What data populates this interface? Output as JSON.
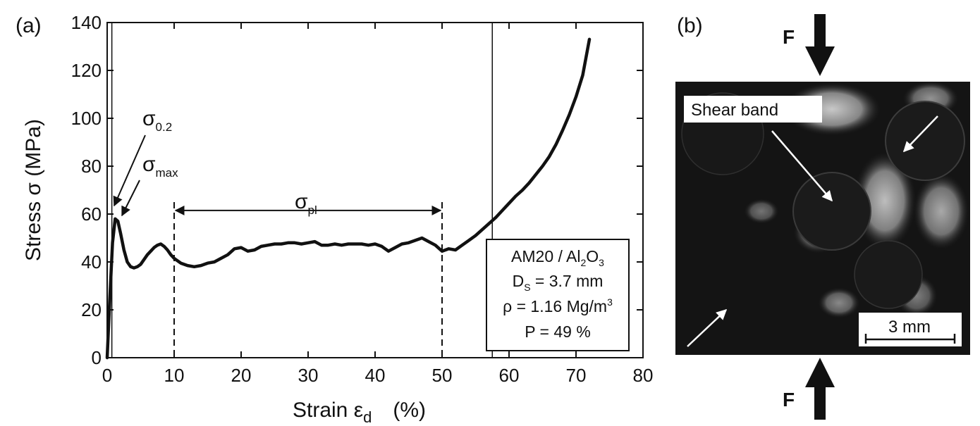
{
  "panel_a_label": "(a)",
  "panel_b_label": "(b)",
  "chart_data": {
    "type": "line",
    "xlabel": "Strain  ε",
    "xlabel_sub": "d",
    "xlabel_unit": "(%)",
    "ylabel": "Stress  σ  (MPa)",
    "xlim": [
      0,
      80
    ],
    "ylim": [
      0,
      140
    ],
    "xticks": [
      "0",
      "10",
      "20",
      "30",
      "40",
      "50",
      "60",
      "70",
      "80"
    ],
    "yticks": [
      "0",
      "20",
      "40",
      "60",
      "80",
      "100",
      "120",
      "140"
    ],
    "grid": false,
    "series": [
      {
        "x": [
          0,
          0.4,
          0.8,
          1.2,
          1.6,
          2.0,
          2.5,
          3.0,
          3.5,
          4.0,
          4.5,
          5.0,
          5.5,
          6.0,
          6.5,
          7.0,
          7.5,
          8.0,
          8.5,
          9.0,
          9.5,
          10.0,
          11,
          12,
          13,
          14,
          15,
          16,
          17,
          18,
          19,
          20,
          21,
          22,
          23,
          24,
          25,
          26,
          27,
          28,
          29,
          30,
          31,
          32,
          33,
          34,
          35,
          36,
          37,
          38,
          39,
          40,
          41,
          42,
          43,
          44,
          45,
          46,
          47,
          48,
          49,
          50,
          51,
          52,
          53,
          54,
          55,
          56,
          57,
          58,
          59,
          60,
          61,
          62,
          63,
          64,
          65,
          66,
          67,
          68,
          69,
          70,
          71,
          72
        ],
        "y": [
          0,
          25,
          48,
          58,
          57,
          52,
          45,
          40,
          38,
          37.5,
          38,
          39,
          41,
          43,
          44.5,
          46,
          47,
          47.5,
          46.5,
          45,
          43,
          41.5,
          39.5,
          38.5,
          38,
          38.5,
          39.5,
          40,
          41.5,
          43,
          45.5,
          46,
          44.5,
          45,
          46.5,
          47,
          47.5,
          47.5,
          48,
          48,
          47.5,
          48,
          48.5,
          47,
          47,
          47.5,
          47,
          47.5,
          47.5,
          47.5,
          47,
          47.5,
          46.5,
          44.5,
          46,
          47.5,
          48,
          49,
          50,
          48.5,
          47,
          44.5,
          45.5,
          45,
          47,
          49,
          51,
          53.5,
          56,
          58.5,
          61.5,
          64.5,
          67.5,
          70,
          73,
          76.5,
          80,
          84,
          89,
          95,
          101.5,
          109,
          118,
          133
        ]
      }
    ],
    "vertical_lines_solid": [
      0.7,
      57.5
    ],
    "vertical_lines_dashed": [
      10,
      50
    ],
    "plateau_arrow": {
      "from": 10,
      "to": 50,
      "y": 61.5
    },
    "annotations": {
      "sigma02": "σ",
      "sigma02_sub": "0.2",
      "sigmamax": "σ",
      "sigmamax_sub": "max",
      "sigmapl": "σ",
      "sigmapl_sub": "pl"
    },
    "info_box": {
      "line1_pre": "AM20 / Al",
      "line1_sub": "2",
      "line1_post": "O",
      "line1_sub2": "3",
      "line2_pre": "D",
      "line2_sub": "S",
      "line2_post": " = 3.7 mm",
      "line3_pre": "ρ = 1.16 Mg/m",
      "line3_sup": "3",
      "line4": "P = 49 %"
    }
  },
  "photo": {
    "force_label_top": "F",
    "force_label_bottom": "F",
    "shear_band_label": "Shear band",
    "scale_bar_label": "3 mm"
  }
}
